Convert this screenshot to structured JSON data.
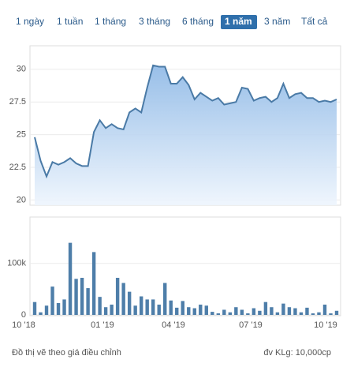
{
  "buttons": [
    "1 ngày",
    "1 tuần",
    "1 tháng",
    "3 tháng",
    "6 tháng",
    "1 năm",
    "3 năm",
    "Tất cả"
  ],
  "active_button": 5,
  "chart_data": [
    {
      "type": "area",
      "color": "#4a7aa6",
      "values": [
        24.8,
        23.0,
        21.8,
        22.9,
        22.7,
        22.9,
        23.2,
        22.8,
        22.6,
        22.6,
        25.2,
        26.1,
        25.5,
        25.8,
        25.5,
        25.4,
        26.7,
        27.0,
        26.7,
        28.6,
        30.3,
        30.2,
        30.2,
        28.9,
        28.9,
        29.4,
        28.8,
        27.7,
        28.2,
        27.9,
        27.6,
        27.8,
        27.3,
        27.4,
        27.5,
        28.6,
        28.5,
        27.6,
        27.8,
        27.9,
        27.5,
        27.8,
        28.9,
        27.8,
        28.1,
        28.2,
        27.8,
        27.8,
        27.5,
        27.6,
        27.5,
        27.7
      ],
      "ylim": [
        19.6,
        31.8
      ],
      "yticks": [
        20,
        22.5,
        25,
        27.5,
        30
      ],
      "grid": true
    },
    {
      "type": "bar",
      "color": "#4e7ea9",
      "values": [
        25000,
        5000,
        18000,
        55000,
        23000,
        30000,
        140000,
        70000,
        72000,
        52000,
        122000,
        35000,
        15000,
        20000,
        72000,
        62000,
        45000,
        18000,
        36000,
        30000,
        30000,
        20000,
        62000,
        28000,
        14000,
        27000,
        15000,
        13000,
        20000,
        18000,
        6000,
        3000,
        10000,
        5000,
        15000,
        10000,
        3000,
        13000,
        8000,
        25000,
        15000,
        5000,
        22000,
        15000,
        13000,
        5000,
        14000,
        3000,
        5000,
        20000,
        3000,
        8000
      ],
      "ylim": [
        0,
        190000
      ],
      "yticks": [
        0,
        {
          "value": 100000,
          "label": "100k"
        }
      ],
      "grid": true,
      "xlabels": [
        "10 '18",
        "01 '19",
        "04 '19",
        "07 '19",
        "10 '19"
      ]
    }
  ],
  "footer": {
    "note": "Đồ thị vẽ theo giá điều chỉnh",
    "unit": "đv KLg: 10,000cp"
  }
}
